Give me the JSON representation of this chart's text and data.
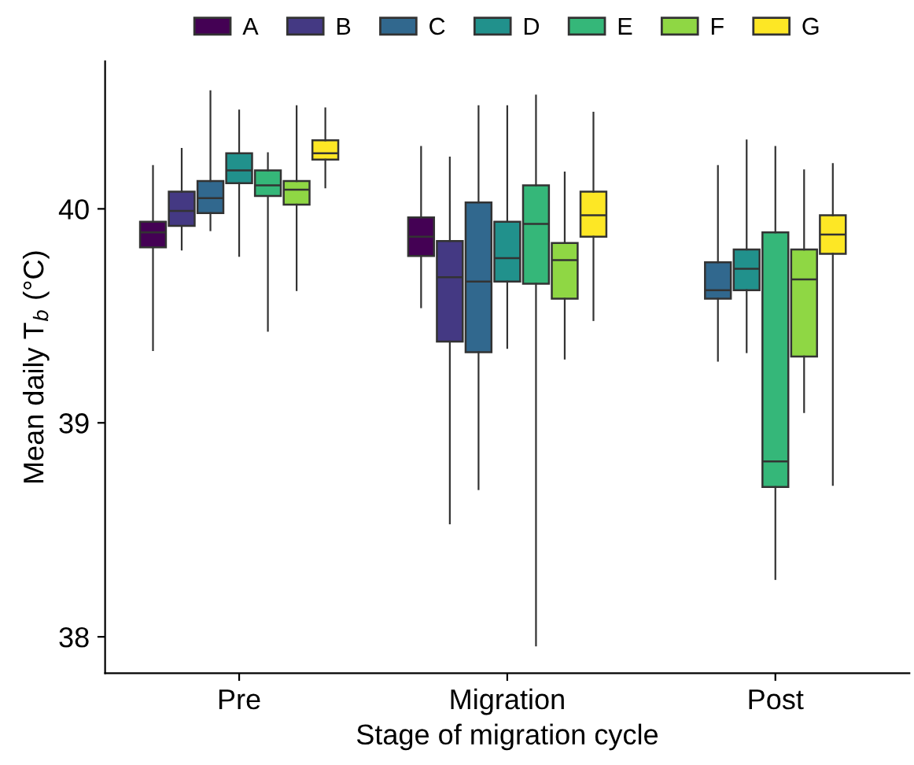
{
  "chart_data": {
    "type": "box",
    "xlabel": "Stage of migration cycle",
    "ylabel": "Mean daily T$_{b}$ (°C)",
    "categories": [
      "Pre",
      "Migration",
      "Post"
    ],
    "ylim": [
      37.83,
      40.69
    ],
    "yticks": [
      38,
      39,
      40
    ],
    "grid": false,
    "legend": "top",
    "series": [
      {
        "name": "A",
        "color": "#440154",
        "boxes": [
          {
            "low": 39.34,
            "q1": 39.82,
            "median": 39.89,
            "q3": 39.94,
            "high": 40.2
          },
          {
            "low": 39.54,
            "q1": 39.78,
            "median": 39.87,
            "q3": 39.96,
            "high": 40.29
          },
          null
        ]
      },
      {
        "name": "B",
        "color": "#443983",
        "boxes": [
          {
            "low": 39.81,
            "q1": 39.92,
            "median": 39.99,
            "q3": 40.08,
            "high": 40.28
          },
          {
            "low": 38.53,
            "q1": 39.38,
            "median": 39.68,
            "q3": 39.85,
            "high": 40.24
          },
          null
        ]
      },
      {
        "name": "C",
        "color": "#31688e",
        "boxes": [
          {
            "low": 39.9,
            "q1": 39.98,
            "median": 40.05,
            "q3": 40.13,
            "high": 40.55
          },
          {
            "low": 38.69,
            "q1": 39.33,
            "median": 39.66,
            "q3": 40.03,
            "high": 40.48
          },
          {
            "low": 39.29,
            "q1": 39.58,
            "median": 39.62,
            "q3": 39.75,
            "high": 40.2
          }
        ]
      },
      {
        "name": "D",
        "color": "#21918c",
        "boxes": [
          {
            "low": 39.78,
            "q1": 40.12,
            "median": 40.18,
            "q3": 40.26,
            "high": 40.46
          },
          {
            "low": 39.35,
            "q1": 39.66,
            "median": 39.77,
            "q3": 39.94,
            "high": 40.48
          },
          {
            "low": 39.33,
            "q1": 39.62,
            "median": 39.72,
            "q3": 39.81,
            "high": 40.32
          }
        ]
      },
      {
        "name": "E",
        "color": "#35b779",
        "boxes": [
          {
            "low": 39.43,
            "q1": 40.06,
            "median": 40.11,
            "q3": 40.18,
            "high": 40.26
          },
          {
            "low": 37.96,
            "q1": 39.65,
            "median": 39.93,
            "q3": 40.11,
            "high": 40.53
          },
          {
            "low": 38.27,
            "q1": 38.7,
            "median": 38.82,
            "q3": 39.89,
            "high": 40.29
          }
        ]
      },
      {
        "name": "F",
        "color": "#8fd744",
        "boxes": [
          {
            "low": 39.62,
            "q1": 40.02,
            "median": 40.09,
            "q3": 40.13,
            "high": 40.48
          },
          {
            "low": 39.3,
            "q1": 39.58,
            "median": 39.76,
            "q3": 39.84,
            "high": 40.17
          },
          {
            "low": 39.05,
            "q1": 39.31,
            "median": 39.67,
            "q3": 39.81,
            "high": 40.18
          }
        ]
      },
      {
        "name": "G",
        "color": "#fde725",
        "boxes": [
          {
            "low": 40.1,
            "q1": 40.23,
            "median": 40.26,
            "q3": 40.32,
            "high": 40.47
          },
          {
            "low": 39.48,
            "q1": 39.87,
            "median": 39.97,
            "q3": 40.08,
            "high": 40.45
          },
          {
            "low": 38.71,
            "q1": 39.79,
            "median": 39.88,
            "q3": 39.97,
            "high": 40.21
          }
        ]
      }
    ]
  }
}
